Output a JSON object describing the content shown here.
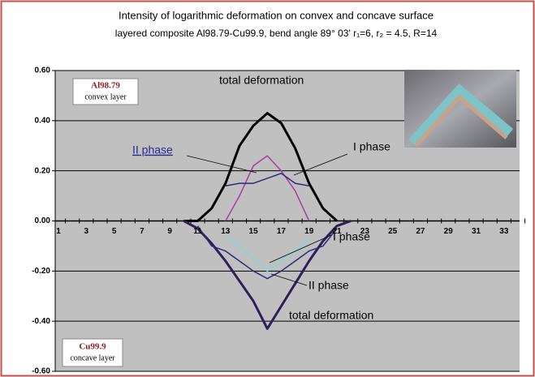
{
  "chart_data": {
    "type": "line",
    "title": "Intensity of logarithmic deformation on convex and concave surface",
    "subtitle": "layered composite Al98.79-Cu99.9, bend angle 89° 03' r₁=6,  r₂ = 4.5, R=14",
    "categories": [
      "1",
      null,
      "3",
      null,
      "5",
      null,
      "7",
      null,
      "9",
      null,
      "11",
      null,
      "13",
      null,
      "15",
      null,
      "17",
      null,
      "19",
      null,
      "21",
      null,
      "23",
      null,
      "25",
      null,
      "27",
      null,
      "29",
      null,
      "31",
      null,
      "33",
      null
    ],
    "ylim": [
      -0.6,
      0.6
    ],
    "yticks": [
      {
        "value": -0.6,
        "label": "-0.60"
      },
      {
        "value": -0.4,
        "label": "-0.40"
      },
      {
        "value": -0.2,
        "label": "-0.20"
      },
      {
        "value": 0,
        "label": "0.00"
      },
      {
        "value": 0.2,
        "label": "0.20"
      },
      {
        "value": 0.4,
        "label": "0.40"
      },
      {
        "value": 0.6,
        "label": "0.60"
      }
    ],
    "grid": true,
    "series": [
      {
        "name": "total deformation",
        "color": "#000000",
        "values": [
          null,
          null,
          null,
          null,
          null,
          null,
          null,
          null,
          null,
          0,
          0,
          0.05,
          0.15,
          0.3,
          0.38,
          0.43,
          0.39,
          0.29,
          0.15,
          0.05,
          0,
          null,
          null,
          null,
          null,
          null,
          null,
          null,
          null,
          null,
          null,
          null,
          null,
          null
        ]
      },
      {
        "name": "I phase",
        "color": "#b03aa0",
        "values": [
          null,
          null,
          null,
          null,
          null,
          null,
          null,
          null,
          null,
          null,
          null,
          null,
          0,
          0.1,
          0.22,
          0.26,
          0.2,
          0.12,
          0,
          null,
          null,
          null,
          null,
          null,
          null,
          null,
          null,
          null,
          null,
          null,
          null,
          null,
          null,
          null
        ]
      },
      {
        "name": "II phase",
        "color": "#2a2a7a",
        "values": [
          null,
          null,
          null,
          null,
          null,
          null,
          null,
          null,
          null,
          null,
          null,
          null,
          0.14,
          0.15,
          0.15,
          0.17,
          0.19,
          0.15,
          0.14,
          null,
          null,
          null,
          null,
          null,
          null,
          null,
          null,
          null,
          null,
          null,
          null,
          null,
          null,
          null
        ]
      },
      {
        "name": "total deformation",
        "color": "#2e1f5a",
        "values": [
          null,
          null,
          null,
          null,
          null,
          null,
          null,
          null,
          null,
          0,
          -0.03,
          -0.09,
          -0.16,
          -0.24,
          -0.32,
          -0.43,
          -0.34,
          -0.25,
          -0.16,
          -0.08,
          -0.02,
          0,
          null,
          null,
          null,
          null,
          null,
          null,
          null,
          null,
          null,
          null,
          null,
          null
        ]
      },
      {
        "name": "II phase",
        "color": "#2a2a80",
        "values": [
          null,
          null,
          null,
          null,
          null,
          null,
          null,
          null,
          null,
          null,
          -0.02,
          -0.1,
          -0.12,
          -0.16,
          -0.2,
          -0.23,
          -0.2,
          -0.16,
          -0.12,
          -0.1,
          -0.03,
          null,
          null,
          null,
          null,
          null,
          null,
          null,
          null,
          null,
          null,
          null,
          null,
          null
        ]
      },
      {
        "name": "I phase",
        "color": "#7fd8e0",
        "values": [
          null,
          null,
          null,
          null,
          null,
          null,
          null,
          null,
          null,
          null,
          null,
          null,
          -0.06,
          -0.1,
          -0.15,
          -0.2,
          -0.16,
          -0.12,
          -0.07,
          null,
          null,
          null,
          null,
          null,
          null,
          null,
          null,
          null,
          null,
          null,
          null,
          null,
          null,
          null
        ]
      }
    ],
    "convex_label": {
      "name": "Al98.79",
      "text": "convex layer"
    },
    "concave_label": {
      "name": "Cu99.9",
      "text": "concave layer"
    }
  }
}
